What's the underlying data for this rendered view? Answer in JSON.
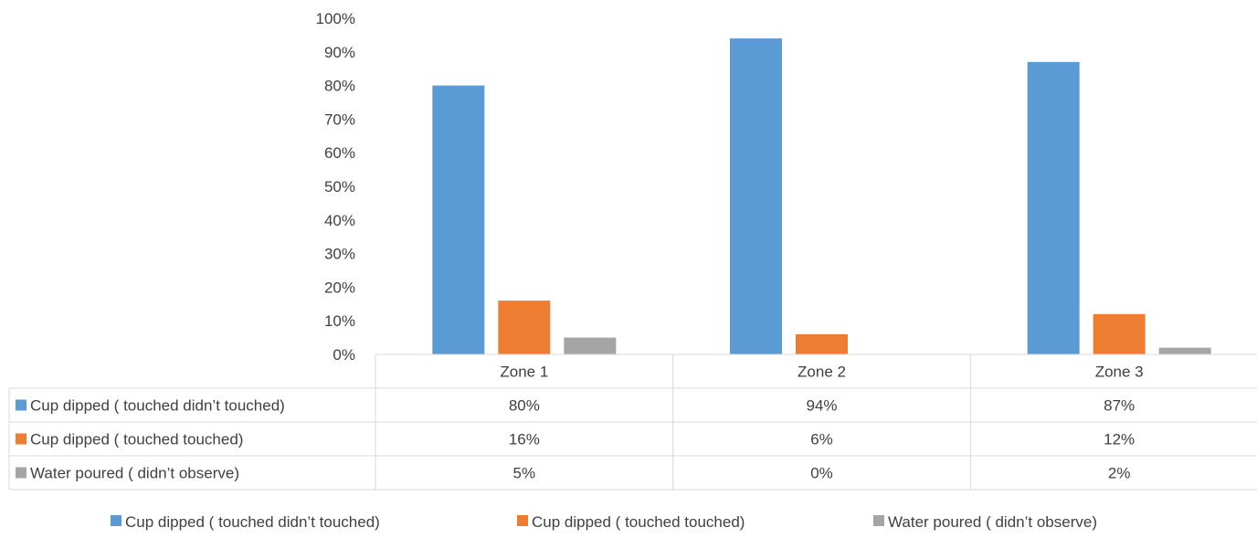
{
  "chart_data": {
    "type": "bar",
    "categories": [
      "Zone 1",
      "Zone 2",
      "Zone 3"
    ],
    "series": [
      {
        "name": "Cup dipped ( touched didn’t touched)",
        "color": "#5b9bd5",
        "values": [
          80,
          94,
          87
        ],
        "labels": [
          "80%",
          "94%",
          "87%"
        ]
      },
      {
        "name": "Cup dipped ( touched  touched)",
        "color": "#ed7d31",
        "values": [
          16,
          6,
          12
        ],
        "labels": [
          "16%",
          "6%",
          "12%"
        ]
      },
      {
        "name": "Water poured ( didn’t observe)",
        "color": "#a5a5a5",
        "values": [
          5,
          0,
          2
        ],
        "labels": [
          "5%",
          "0%",
          "2%"
        ]
      }
    ],
    "ylim": [
      0,
      100
    ],
    "yticks": [
      "0%",
      "10%",
      "20%",
      "30%",
      "40%",
      "50%",
      "60%",
      "70%",
      "80%",
      "90%",
      "100%"
    ],
    "data_table": true,
    "legend_position": "bottom",
    "grid": false
  }
}
